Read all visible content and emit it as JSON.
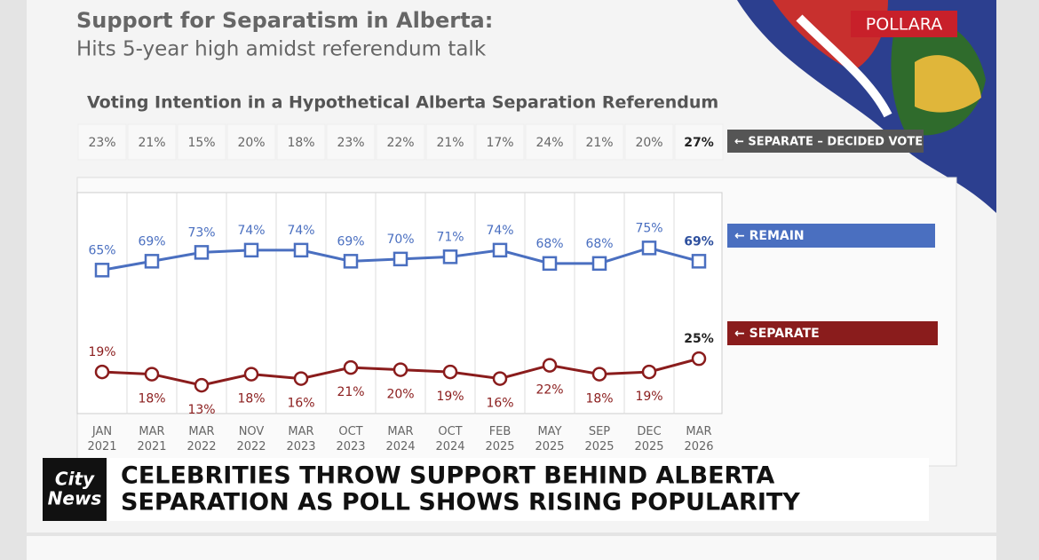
{
  "header": {
    "title": "Support for Separatism in Alberta:",
    "subtitle": "Hits 5-year high amidst referendum talk",
    "brand": "POLLARA"
  },
  "chart_data": {
    "type": "line",
    "title": "Voting Intention in a Hypothetical Alberta Separation Referendum",
    "categories": [
      "JAN 2021",
      "MAR 2021",
      "MAR 2022",
      "NOV 2022",
      "MAR 2023",
      "OCT 2023",
      "MAR 2024",
      "OCT 2024",
      "FEB 2025",
      "MAY 2025",
      "SEP 2025",
      "DEC 2025",
      "MAR 2026"
    ],
    "decided_vote": {
      "name": "← SEPARATE – DECIDED VOTE",
      "values": [
        23,
        21,
        15,
        20,
        18,
        23,
        22,
        21,
        17,
        24,
        21,
        20,
        27
      ],
      "value_labels": [
        "23%",
        "21%",
        "15%",
        "20%",
        "18%",
        "23%",
        "22%",
        "21%",
        "17%",
        "24%",
        "21%",
        "20%",
        "27%"
      ]
    },
    "series": [
      {
        "name": "← REMAIN",
        "color": "#4a6fc0",
        "values": [
          65,
          69,
          73,
          74,
          74,
          69,
          70,
          71,
          74,
          68,
          68,
          75,
          69
        ],
        "value_labels": [
          "65%",
          "69%",
          "73%",
          "74%",
          "74%",
          "69%",
          "70%",
          "71%",
          "74%",
          "68%",
          "68%",
          "75%",
          "69%"
        ]
      },
      {
        "name": "← SEPARATE",
        "color": "#8a1c1c",
        "values": [
          19,
          18,
          13,
          18,
          16,
          21,
          20,
          19,
          16,
          22,
          18,
          19,
          25
        ],
        "value_labels": [
          "19%",
          "18%",
          "13%",
          "18%",
          "16%",
          "21%",
          "20%",
          "19%",
          "16%",
          "22%",
          "18%",
          "19%",
          "25%"
        ]
      }
    ],
    "ylim": [
      0,
      100
    ]
  },
  "ticker": {
    "logo": [
      "City",
      "News"
    ],
    "lines": [
      "CELEBRITIES THROW SUPPORT BEHIND ALBERTA",
      "SEPARATION AS POLL SHOWS RISING POPULARITY"
    ]
  }
}
